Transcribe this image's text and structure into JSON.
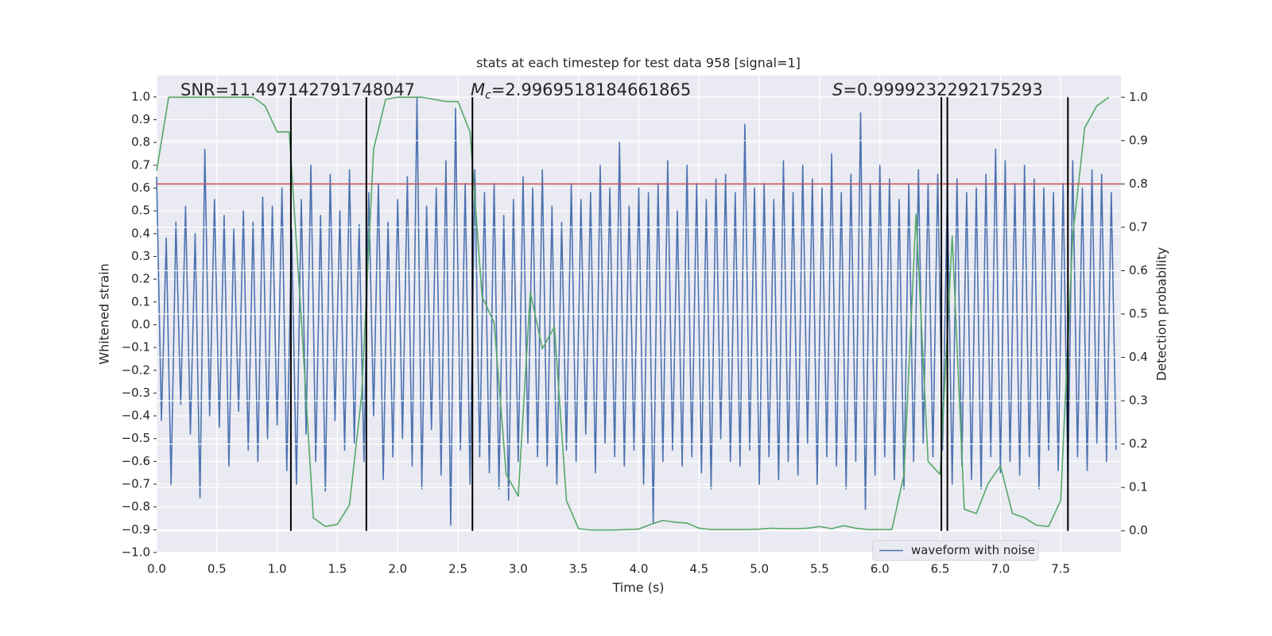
{
  "chart_data": {
    "type": "line",
    "title": "stats at each timestep for test data 958 [signal=1]",
    "xlabel": "Time (s)",
    "ylabel": "Whitened strain",
    "y2label": "Detection probability",
    "xlim": [
      0,
      8.0
    ],
    "ylim": [
      -1.0,
      1.094
    ],
    "y2lim": [
      -0.05,
      1.05
    ],
    "grid": true,
    "legend": "lower right",
    "xticks": [
      {
        "value": 0,
        "label": "0.0"
      },
      {
        "value": 0.5,
        "label": "0.5"
      },
      {
        "value": 1,
        "label": "1.0"
      },
      {
        "value": 1.5,
        "label": "1.5"
      },
      {
        "value": 2,
        "label": "2.0"
      },
      {
        "value": 2.5,
        "label": "2.5"
      },
      {
        "value": 3,
        "label": "3.0"
      },
      {
        "value": 3.5,
        "label": "3.5"
      },
      {
        "value": 4,
        "label": "4.0"
      },
      {
        "value": 4.5,
        "label": "4.5"
      },
      {
        "value": 5,
        "label": "5.0"
      },
      {
        "value": 5.5,
        "label": "5.5"
      },
      {
        "value": 6,
        "label": "6.0"
      },
      {
        "value": 6.5,
        "label": "6.5"
      },
      {
        "value": 7,
        "label": "7.0"
      },
      {
        "value": 7.5,
        "label": "7.5"
      }
    ],
    "yticks": [
      {
        "value": -1,
        "label": "−1.0"
      },
      {
        "value": -0.9,
        "label": "−0.9"
      },
      {
        "value": -0.8,
        "label": "−0.8"
      },
      {
        "value": -0.7,
        "label": "−0.7"
      },
      {
        "value": -0.6,
        "label": "−0.6"
      },
      {
        "value": -0.5,
        "label": "−0.5"
      },
      {
        "value": -0.4,
        "label": "−0.4"
      },
      {
        "value": -0.3,
        "label": "−0.3"
      },
      {
        "value": -0.2,
        "label": "−0.2"
      },
      {
        "value": -0.1,
        "label": "−0.1"
      },
      {
        "value": 0,
        "label": "0.0"
      },
      {
        "value": 0.1,
        "label": "0.1"
      },
      {
        "value": 0.2,
        "label": "0.2"
      },
      {
        "value": 0.3,
        "label": "0.3"
      },
      {
        "value": 0.4,
        "label": "0.4"
      },
      {
        "value": 0.5,
        "label": "0.5"
      },
      {
        "value": 0.6,
        "label": "0.6"
      },
      {
        "value": 0.7,
        "label": "0.7"
      },
      {
        "value": 0.8,
        "label": "0.8"
      },
      {
        "value": 0.9,
        "label": "0.9"
      },
      {
        "value": 1,
        "label": "1.0"
      }
    ],
    "y2ticks": [
      {
        "value": 0,
        "label": "0.0"
      },
      {
        "value": 0.1,
        "label": "0.1"
      },
      {
        "value": 0.2,
        "label": "0.2"
      },
      {
        "value": 0.3,
        "label": "0.3"
      },
      {
        "value": 0.4,
        "label": "0.4"
      },
      {
        "value": 0.5,
        "label": "0.5"
      },
      {
        "value": 0.6,
        "label": "0.6"
      },
      {
        "value": 0.7,
        "label": "0.7"
      },
      {
        "value": 0.8,
        "label": "0.8"
      },
      {
        "value": 0.9,
        "label": "0.9"
      },
      {
        "value": 1,
        "label": "1.0"
      }
    ],
    "series": [
      {
        "name": "waveform with noise",
        "color": "#4c72b0",
        "x": [
          0,
          0.04,
          0.08,
          0.12,
          0.16,
          0.2,
          0.24,
          0.28,
          0.32,
          0.36,
          0.4,
          0.44,
          0.48,
          0.52,
          0.56,
          0.6,
          0.64,
          0.68,
          0.72,
          0.76,
          0.8,
          0.84,
          0.88,
          0.92,
          0.96,
          1,
          1.04,
          1.08,
          1.12,
          1.16,
          1.2,
          1.24,
          1.28,
          1.32,
          1.36,
          1.4,
          1.44,
          1.48,
          1.52,
          1.56,
          1.6,
          1.64,
          1.68,
          1.72,
          1.76,
          1.8,
          1.84,
          1.88,
          1.92,
          1.96,
          2,
          2.04,
          2.08,
          2.12,
          2.16,
          2.2,
          2.24,
          2.28,
          2.32,
          2.36,
          2.4,
          2.44,
          2.48,
          2.52,
          2.56,
          2.6,
          2.64,
          2.68,
          2.72,
          2.76,
          2.8,
          2.84,
          2.88,
          2.92,
          2.96,
          3,
          3.04,
          3.08,
          3.12,
          3.16,
          3.2,
          3.24,
          3.28,
          3.32,
          3.36,
          3.4,
          3.44,
          3.48,
          3.52,
          3.56,
          3.6,
          3.64,
          3.68,
          3.72,
          3.76,
          3.8,
          3.84,
          3.88,
          3.92,
          3.96,
          4,
          4.04,
          4.08,
          4.12,
          4.16,
          4.2,
          4.24,
          4.28,
          4.32,
          4.36,
          4.4,
          4.44,
          4.48,
          4.52,
          4.56,
          4.6,
          4.64,
          4.68,
          4.72,
          4.76,
          4.8,
          4.84,
          4.88,
          4.92,
          4.96,
          5,
          5.04,
          5.08,
          5.12,
          5.16,
          5.2,
          5.24,
          5.28,
          5.32,
          5.36,
          5.4,
          5.44,
          5.48,
          5.52,
          5.56,
          5.6,
          5.64,
          5.68,
          5.72,
          5.76,
          5.8,
          5.84,
          5.88,
          5.92,
          5.96,
          6,
          6.04,
          6.08,
          6.12,
          6.16,
          6.2,
          6.24,
          6.28,
          6.32,
          6.36,
          6.4,
          6.44,
          6.48,
          6.52,
          6.56,
          6.6,
          6.64,
          6.68,
          6.72,
          6.76,
          6.8,
          6.84,
          6.88,
          6.92,
          6.96,
          7,
          7.04,
          7.08,
          7.12,
          7.16,
          7.2,
          7.24,
          7.28,
          7.32,
          7.36,
          7.4,
          7.44,
          7.48,
          7.52,
          7.56,
          7.6,
          7.64,
          7.68,
          7.72,
          7.76,
          7.8,
          7.84,
          7.88,
          7.92,
          7.96
        ],
        "values": [
          0.65,
          -0.42,
          0.38,
          -0.7,
          0.45,
          -0.35,
          0.52,
          -0.48,
          0.4,
          -0.76,
          0.77,
          -0.4,
          0.55,
          -0.45,
          0.48,
          -0.62,
          0.42,
          -0.38,
          0.5,
          -0.55,
          0.45,
          -0.6,
          0.56,
          -0.5,
          0.52,
          -0.44,
          0.6,
          -0.64,
          0.42,
          -0.7,
          0.55,
          -0.48,
          0.7,
          -0.6,
          0.48,
          -0.73,
          0.66,
          -0.42,
          0.5,
          -0.55,
          0.68,
          -0.52,
          0.44,
          -0.6,
          0.58,
          -0.4,
          0.62,
          -0.68,
          0.45,
          -0.58,
          0.55,
          -0.5,
          0.65,
          -0.62,
          1.0,
          -0.72,
          0.52,
          -0.46,
          0.6,
          -0.66,
          0.72,
          -0.88,
          0.95,
          -0.55,
          0.62,
          -0.7,
          0.68,
          -0.58,
          0.58,
          -0.65,
          0.62,
          -0.72,
          0.48,
          -0.77,
          0.55,
          -0.6,
          0.65,
          -0.52,
          0.6,
          -0.58,
          0.68,
          -0.62,
          0.52,
          -0.7,
          0.45,
          -0.55,
          0.62,
          -0.6,
          0.55,
          -0.48,
          0.58,
          -0.65,
          0.7,
          -0.52,
          0.6,
          -0.58,
          0.8,
          -0.62,
          0.52,
          -0.55,
          0.6,
          -0.7,
          0.58,
          -0.87,
          0.62,
          -0.6,
          0.72,
          -0.55,
          0.5,
          -0.62,
          0.7,
          -0.58,
          0.62,
          -0.65,
          0.55,
          -0.72,
          0.64,
          -0.5,
          0.66,
          -0.6,
          0.58,
          -0.62,
          0.88,
          -0.55,
          0.6,
          -0.7,
          0.62,
          -0.58,
          0.55,
          -0.68,
          0.72,
          -0.6,
          0.58,
          -0.66,
          0.7,
          -0.52,
          0.64,
          -0.7,
          0.6,
          -0.58,
          0.75,
          -0.62,
          0.58,
          -0.72,
          0.66,
          -0.6,
          0.93,
          -0.81,
          0.62,
          -0.66,
          0.7,
          -0.58,
          0.64,
          -0.68,
          0.55,
          -0.72,
          0.62,
          -0.6,
          0.68,
          -0.52,
          0.62,
          -0.58,
          0.66,
          -0.55,
          0.6,
          -0.7,
          0.64,
          -0.62,
          0.58,
          -0.68,
          0.6,
          -0.72,
          0.66,
          -0.58,
          0.77,
          -0.65,
          0.72,
          -0.6,
          0.62,
          -0.66,
          0.7,
          -0.58,
          0.64,
          -0.72,
          0.6,
          -0.55,
          0.58,
          -0.64,
          0.62,
          -0.68,
          0.72,
          -0.58,
          0.6,
          -0.64,
          0.68,
          -0.52,
          0.66,
          -0.6,
          0.58,
          -0.55
        ]
      },
      {
        "color": "#55a868",
        "axis": "y2",
        "x": [
          0,
          0.1,
          0.2,
          0.3,
          0.4,
          0.5,
          0.6,
          0.7,
          0.8,
          0.9,
          1,
          1.1,
          1.2,
          1.3,
          1.4,
          1.5,
          1.6,
          1.7,
          1.8,
          1.9,
          2,
          2.1,
          2.2,
          2.3,
          2.4,
          2.5,
          2.6,
          2.7,
          2.8,
          2.9,
          3,
          3.1,
          3.2,
          3.3,
          3.4,
          3.5,
          3.6,
          3.7,
          3.8,
          3.9,
          4,
          4.1,
          4.2,
          4.3,
          4.4,
          4.5,
          4.6,
          4.7,
          4.8,
          4.9,
          5,
          5.1,
          5.2,
          5.3,
          5.4,
          5.5,
          5.6,
          5.7,
          5.8,
          5.9,
          6,
          6.1,
          6.2,
          6.3,
          6.4,
          6.5,
          6.6,
          6.7,
          6.8,
          6.9,
          7,
          7.1,
          7.2,
          7.3,
          7.4,
          7.5,
          7.6,
          7.7,
          7.8,
          7.9
        ],
        "values": [
          0.83,
          1.0,
          1.0,
          1.0,
          1.0,
          1.0,
          1.0,
          1.0,
          1.0,
          0.98,
          0.92,
          0.92,
          0.49,
          0.03,
          0.01,
          0.015,
          0.06,
          0.31,
          0.88,
          0.995,
          1.0,
          1.0,
          1.0,
          0.995,
          0.99,
          0.99,
          0.92,
          0.54,
          0.48,
          0.13,
          0.08,
          0.55,
          0.42,
          0.47,
          0.07,
          0.005,
          0.002,
          0.002,
          0.002,
          0.003,
          0.004,
          0.015,
          0.024,
          0.02,
          0.018,
          0.006,
          0.003,
          0.003,
          0.003,
          0.003,
          0.004,
          0.006,
          0.005,
          0.005,
          0.006,
          0.01,
          0.005,
          0.012,
          0.006,
          0.003,
          0.003,
          0.003,
          0.13,
          0.73,
          0.16,
          0.13,
          0.68,
          0.05,
          0.04,
          0.11,
          0.15,
          0.04,
          0.03,
          0.013,
          0.01,
          0.07,
          0.68,
          0.93,
          0.98,
          1.0
        ]
      }
    ],
    "hline": {
      "value": 0.8,
      "axis": "y2",
      "color": "#c44e52"
    },
    "vlines": {
      "x": [
        1.114,
        1.74,
        2.62,
        6.51,
        6.56,
        7.56
      ],
      "ymin": 0,
      "ymax": 1,
      "axis": "y2",
      "color": "#000000"
    },
    "annotations": [
      {
        "text": "SNR=11.497142791748047"
      },
      {
        "symbol": "M",
        "subscript": "c",
        "text": "=2.9969518184661865"
      },
      {
        "symbol": "S",
        "text": "=0.9999232292175293"
      }
    ]
  }
}
